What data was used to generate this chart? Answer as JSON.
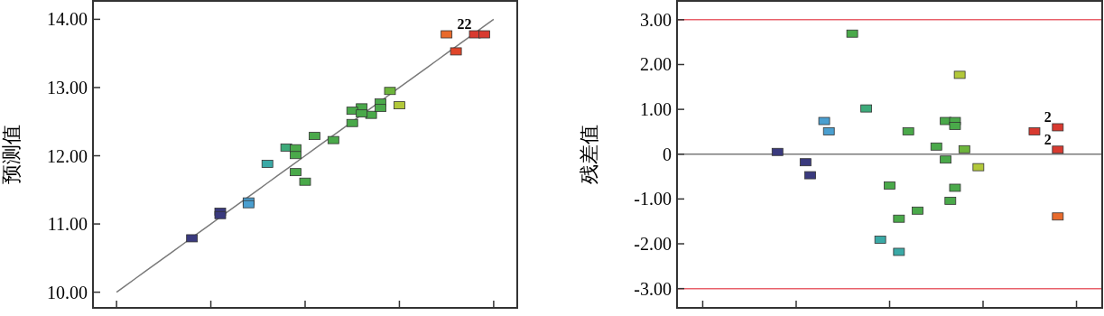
{
  "chart_data": [
    {
      "type": "scatter",
      "ylabel": "预测值",
      "tick_labels": "y",
      "categories": [
        null,
        null,
        null,
        null,
        null,
        null,
        null,
        null,
        null,
        null,
        null,
        null,
        null,
        null,
        null,
        null,
        null,
        null,
        null,
        null,
        null,
        null,
        null,
        null,
        null,
        null,
        null,
        null,
        null,
        null,
        null,
        null,
        null,
        null,
        null,
        null,
        null,
        null,
        null,
        null,
        null,
        null,
        null,
        null,
        null
      ],
      "ylim": [
        9.77,
        14.27
      ],
      "yticks": [
        {
          "value": 10,
          "label": "10.00"
        },
        {
          "value": 11,
          "label": "11.00"
        },
        {
          "value": 12,
          "label": "12.00"
        },
        {
          "value": 13,
          "label": "13.00"
        },
        {
          "value": 14,
          "label": "14.00"
        }
      ],
      "annotations": [
        {
          "text": "22",
          "y": 13.78
        }
      ],
      "series": [
        {
          "type": "line",
          "color": "#7a7a7a",
          "values": [
            null,
            null,
            10.0,
            10.1,
            10.2,
            10.3,
            10.4,
            10.5,
            10.6,
            10.7,
            10.8,
            10.9,
            11.0,
            11.1,
            11.2,
            11.3,
            11.4,
            11.5,
            11.6,
            11.7,
            11.8,
            11.9,
            12.0,
            12.1,
            12.2,
            12.3,
            12.4,
            12.5,
            12.6,
            12.7,
            12.8,
            12.9,
            13.0,
            13.1,
            13.2,
            13.3,
            13.4,
            13.5,
            13.6,
            13.7,
            13.8,
            13.9,
            14.0,
            null,
            null
          ]
        },
        {
          "type": "scatter",
          "marker": "square",
          "values": [
            null,
            null,
            null,
            null,
            null,
            null,
            null,
            null,
            null,
            null,
            10.79,
            null,
            null,
            11.18,
            null,
            null,
            11.33,
            null,
            11.88,
            null,
            12.12,
            12.11,
            11.62,
            12.29,
            null,
            12.23,
            null,
            12.48,
            12.71,
            12.6,
            12.78,
            12.95,
            12.74,
            null,
            null,
            null,
            null,
            13.78,
            13.53,
            null,
            13.78,
            13.78,
            null,
            null,
            null
          ],
          "colors": [
            null,
            null,
            null,
            null,
            null,
            null,
            null,
            null,
            null,
            null,
            "#3a3a7e",
            null,
            null,
            "#3a3a7e",
            null,
            null,
            "#4a9fd0",
            null,
            "#3aa9a6",
            null,
            "#3daa7a",
            "#4aa94a",
            "#4aa94a",
            "#4aa94a",
            null,
            "#4aa94a",
            null,
            "#4aa94a",
            "#4aa94a",
            "#4aa94a",
            "#4aa94a",
            "#6db53c",
            "#b2c83a",
            null,
            null,
            null,
            null,
            "#e86a2c",
            "#e0452a",
            null,
            "#d83a30",
            "#d83a30",
            null,
            null,
            null
          ]
        },
        {
          "type": "scatter",
          "marker": "square",
          "values": [
            null,
            null,
            null,
            null,
            null,
            null,
            null,
            null,
            null,
            null,
            null,
            null,
            null,
            11.13,
            null,
            null,
            11.29,
            null,
            null,
            null,
            null,
            12.01,
            null,
            null,
            null,
            null,
            null,
            12.66,
            12.62,
            null,
            12.7,
            null,
            null,
            null,
            null,
            null,
            null,
            null,
            null,
            null,
            null,
            null,
            null,
            null,
            null
          ],
          "colors": [
            null,
            null,
            null,
            null,
            null,
            null,
            null,
            null,
            null,
            null,
            null,
            null,
            null,
            "#3a3a7e",
            null,
            null,
            "#4a9fd0",
            null,
            null,
            null,
            null,
            "#4aa94a",
            null,
            null,
            null,
            null,
            null,
            "#4aa94a",
            "#4aa94a",
            null,
            "#4aa94a",
            null,
            null,
            null,
            null,
            null,
            null,
            null,
            null,
            null,
            null,
            null,
            null,
            null,
            null
          ]
        },
        {
          "type": "scatter",
          "marker": "square",
          "values": [
            null,
            null,
            null,
            null,
            null,
            null,
            null,
            null,
            null,
            null,
            null,
            null,
            null,
            null,
            null,
            null,
            null,
            null,
            null,
            null,
            null,
            11.76,
            null,
            null,
            null,
            null,
            null,
            null,
            null,
            null,
            null,
            null,
            null,
            null,
            null,
            null,
            null,
            null,
            null,
            null,
            null,
            null,
            null,
            null,
            null
          ],
          "colors": [
            null,
            null,
            null,
            null,
            null,
            null,
            null,
            null,
            null,
            null,
            null,
            null,
            null,
            null,
            null,
            null,
            null,
            null,
            null,
            null,
            null,
            "#4aa94a",
            null,
            null,
            null,
            null,
            null,
            null,
            null,
            null,
            null,
            null,
            null,
            null,
            null,
            null,
            null,
            null,
            null,
            null,
            null,
            null,
            null,
            null,
            null
          ]
        }
      ]
    },
    {
      "type": "scatter",
      "ylabel": "残差值",
      "tick_labels": "y",
      "categories": [
        null,
        null,
        null,
        null,
        null,
        null,
        null,
        null,
        null,
        null,
        null,
        null,
        null,
        null,
        null,
        null,
        null,
        null,
        null,
        null,
        null,
        null,
        null,
        null,
        null,
        null,
        null,
        null,
        null,
        null,
        null,
        null,
        null,
        null,
        null,
        null,
        null,
        null,
        null,
        null,
        null,
        null,
        null,
        null,
        null,
        null,
        null,
        null,
        null,
        null,
        null,
        null,
        null,
        null,
        null,
        null,
        null,
        null,
        null,
        null,
        null,
        null,
        null,
        null,
        null,
        null,
        null,
        null,
        null,
        null,
        null,
        null,
        null,
        null,
        null,
        null,
        null,
        null,
        null,
        null,
        null,
        null,
        null,
        null,
        null,
        null,
        null,
        null,
        null,
        null,
        null
      ],
      "ylim": [
        -3.43,
        3.42
      ],
      "yticks": [
        {
          "value": -3,
          "label": "-3.00"
        },
        {
          "value": -2,
          "label": "-2.00"
        },
        {
          "value": -1,
          "label": "-1.00"
        },
        0,
        {
          "value": 1,
          "label": "1.00"
        },
        {
          "value": 2,
          "label": "2.00"
        },
        {
          "value": 3,
          "label": "3.00"
        }
      ],
      "ref_lines": [
        {
          "axis": "y",
          "value": 3,
          "color": "#e8606a"
        },
        {
          "axis": "y",
          "value": -3,
          "color": "#e8606a"
        },
        {
          "axis": "y",
          "value": 0,
          "color": "#7a7a7a"
        }
      ],
      "annotations": [
        {
          "text": "2",
          "y": 0.6
        },
        {
          "text": "2",
          "y": 0.1
        }
      ],
      "series": [
        {
          "type": "scatter",
          "marker": "square",
          "values": [
            null,
            null,
            null,
            null,
            null,
            null,
            null,
            null,
            null,
            null,
            null,
            null,
            null,
            null,
            null,
            null,
            null,
            null,
            null,
            null,
            null,
            0.05,
            null,
            null,
            null,
            null,
            null,
            -0.18,
            -0.47,
            null,
            null,
            0.74,
            0.51,
            null,
            null,
            null,
            null,
            2.69,
            null,
            null,
            1.02,
            null,
            null,
            -1.91,
            null,
            -0.7,
            null,
            -1.44,
            null,
            0.51,
            null,
            -1.26,
            null,
            null,
            null,
            0.17,
            null,
            0.74,
            -1.04,
            0.74,
            1.77,
            0.11,
            null,
            null,
            -0.29,
            null,
            null,
            null,
            null,
            null,
            null,
            null,
            null,
            null,
            null,
            null,
            0.51,
            null,
            null,
            null,
            null,
            0.6,
            null,
            null,
            null,
            null,
            null,
            null,
            null,
            null,
            null
          ],
          "colors": [
            null,
            null,
            null,
            null,
            null,
            null,
            null,
            null,
            null,
            null,
            null,
            null,
            null,
            null,
            null,
            null,
            null,
            null,
            null,
            null,
            null,
            "#3a3a7e",
            null,
            null,
            null,
            null,
            null,
            "#3a3a7e",
            "#3a3a7e",
            null,
            null,
            "#4a9fd0",
            "#4a9fd0",
            null,
            null,
            null,
            null,
            "#4aa94a",
            null,
            null,
            "#3daa7a",
            null,
            null,
            "#3aa9a6",
            null,
            "#4aa94a",
            null,
            "#4aa94a",
            null,
            "#4aa94a",
            null,
            "#4aa94a",
            null,
            null,
            null,
            "#4aa94a",
            null,
            "#4aa94a",
            "#4aa94a",
            "#4aa94a",
            "#b2c83a",
            "#6db53c",
            null,
            null,
            "#b2c83a",
            null,
            null,
            null,
            null,
            null,
            null,
            null,
            null,
            null,
            null,
            null,
            "#d83a30",
            null,
            null,
            null,
            null,
            "#d83a30",
            null,
            null,
            null,
            null,
            null,
            null,
            null,
            null,
            null
          ]
        },
        {
          "type": "scatter",
          "marker": "square",
          "values": [
            null,
            null,
            null,
            null,
            null,
            null,
            null,
            null,
            null,
            null,
            null,
            null,
            null,
            null,
            null,
            null,
            null,
            null,
            null,
            null,
            null,
            null,
            null,
            null,
            null,
            null,
            null,
            null,
            null,
            null,
            null,
            null,
            null,
            null,
            null,
            null,
            null,
            null,
            null,
            null,
            null,
            null,
            null,
            null,
            null,
            null,
            null,
            -2.18,
            null,
            null,
            null,
            null,
            null,
            null,
            null,
            null,
            null,
            -0.12,
            null,
            0.63,
            null,
            null,
            null,
            null,
            null,
            null,
            null,
            null,
            null,
            null,
            null,
            null,
            null,
            null,
            null,
            null,
            null,
            null,
            null,
            null,
            null,
            0.1,
            null,
            null,
            null,
            null,
            null,
            null,
            null,
            null,
            null
          ],
          "colors": [
            null,
            null,
            null,
            null,
            null,
            null,
            null,
            null,
            null,
            null,
            null,
            null,
            null,
            null,
            null,
            null,
            null,
            null,
            null,
            null,
            null,
            null,
            null,
            null,
            null,
            null,
            null,
            null,
            null,
            null,
            null,
            null,
            null,
            null,
            null,
            null,
            null,
            null,
            null,
            null,
            null,
            null,
            null,
            null,
            null,
            null,
            null,
            "#3aa9a6",
            null,
            null,
            null,
            null,
            null,
            null,
            null,
            null,
            null,
            "#4aa94a",
            null,
            "#4aa94a",
            null,
            null,
            null,
            null,
            null,
            null,
            null,
            null,
            null,
            null,
            null,
            null,
            null,
            null,
            null,
            null,
            null,
            null,
            null,
            null,
            null,
            "#d83a30",
            null,
            null,
            null,
            null,
            null,
            null,
            null,
            null,
            null
          ]
        },
        {
          "type": "scatter",
          "marker": "square",
          "values": [
            null,
            null,
            null,
            null,
            null,
            null,
            null,
            null,
            null,
            null,
            null,
            null,
            null,
            null,
            null,
            null,
            null,
            null,
            null,
            null,
            null,
            null,
            null,
            null,
            null,
            null,
            null,
            null,
            null,
            null,
            null,
            null,
            null,
            null,
            null,
            null,
            null,
            null,
            null,
            null,
            null,
            null,
            null,
            null,
            null,
            null,
            null,
            null,
            null,
            null,
            null,
            null,
            null,
            null,
            null,
            null,
            null,
            null,
            null,
            -0.75,
            null,
            null,
            null,
            null,
            null,
            null,
            null,
            null,
            null,
            null,
            null,
            null,
            null,
            null,
            null,
            null,
            null,
            null,
            null,
            null,
            null,
            -1.39,
            null,
            null,
            null,
            null,
            null,
            null,
            null,
            null,
            null
          ],
          "colors": [
            null,
            null,
            null,
            null,
            null,
            null,
            null,
            null,
            null,
            null,
            null,
            null,
            null,
            null,
            null,
            null,
            null,
            null,
            null,
            null,
            null,
            null,
            null,
            null,
            null,
            null,
            null,
            null,
            null,
            null,
            null,
            null,
            null,
            null,
            null,
            null,
            null,
            null,
            null,
            null,
            null,
            null,
            null,
            null,
            null,
            null,
            null,
            null,
            null,
            null,
            null,
            null,
            null,
            null,
            null,
            null,
            null,
            null,
            null,
            "#4aa94a",
            null,
            null,
            null,
            null,
            null,
            null,
            null,
            null,
            null,
            null,
            null,
            null,
            null,
            null,
            null,
            null,
            null,
            null,
            null,
            null,
            null,
            "#e86a2c",
            null,
            null,
            null,
            null,
            null,
            null,
            null,
            null,
            null
          ]
        }
      ]
    }
  ]
}
